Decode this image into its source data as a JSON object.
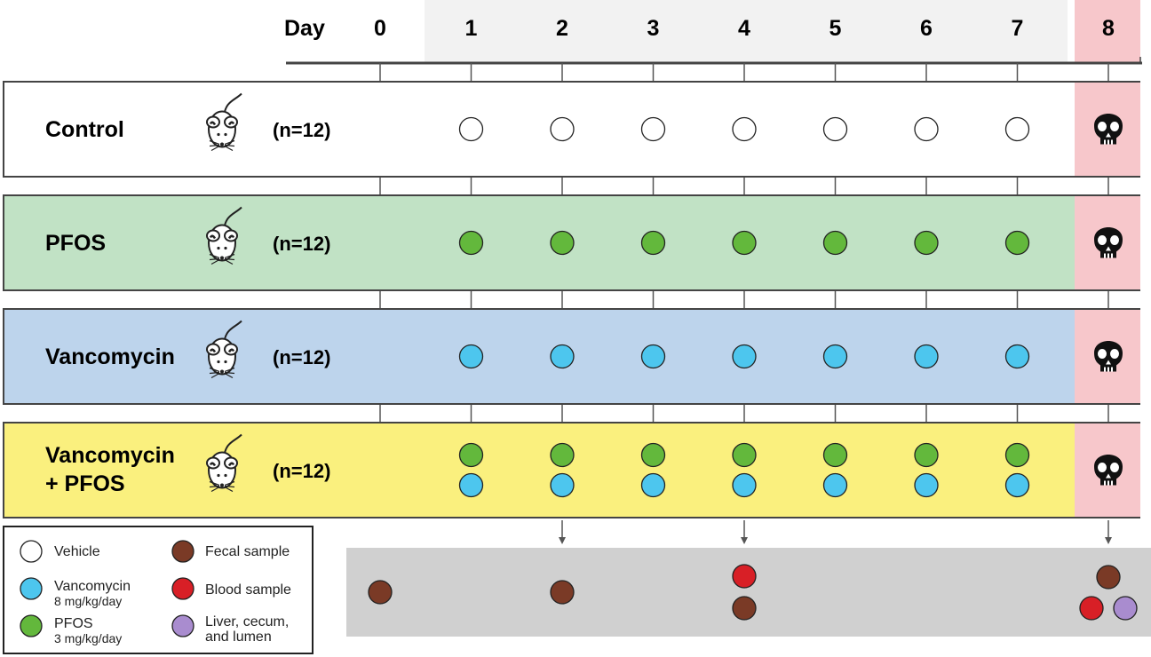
{
  "timeline": {
    "day_word": "Day",
    "days": [
      "0",
      "1",
      "2",
      "3",
      "4",
      "5",
      "6",
      "7",
      "8"
    ]
  },
  "colors": {
    "vehicle": "#ffffff",
    "vancomycin": "#4dc6ee",
    "pfos": "#63b83c",
    "fecal": "#7a3a26",
    "blood": "#d81f26",
    "tissue": "#a98ccf",
    "sacrifice_bg": "#f7c7cb",
    "dosing_period_bg": "#f2f2f2",
    "sample_panel_bg": "#d0d0d0"
  },
  "groups": [
    {
      "name_lines": [
        "Control"
      ],
      "n": "(n=12)",
      "bg": "#ffffff",
      "treatments": [
        "vehicle"
      ]
    },
    {
      "name_lines": [
        "PFOS"
      ],
      "n": "(n=12)",
      "bg": "#c1e2c5",
      "treatments": [
        "pfos"
      ]
    },
    {
      "name_lines": [
        "Vancomycin"
      ],
      "n": "(n=12)",
      "bg": "#bdd4ec",
      "treatments": [
        "vancomycin"
      ]
    },
    {
      "name_lines": [
        "Vancomycin",
        "+ PFOS"
      ],
      "n": "(n=12)",
      "bg": "#faf07e",
      "treatments": [
        "pfos",
        "vancomycin"
      ]
    }
  ],
  "treatment_days": [
    1,
    2,
    3,
    4,
    5,
    6,
    7
  ],
  "sacrifice_day": 8,
  "sacrifice_icon": "skull-icon",
  "animal_icon": "mouse-icon",
  "samples": [
    {
      "day": 0,
      "items": [
        "fecal"
      ]
    },
    {
      "day": 2,
      "items": [
        "fecal"
      ]
    },
    {
      "day": 4,
      "items": [
        "blood",
        "fecal"
      ]
    },
    {
      "day": 8,
      "items": [
        "fecal",
        "blood",
        "tissue"
      ]
    }
  ],
  "legend": {
    "vehicle": {
      "label": "Vehicle",
      "sub": ""
    },
    "vancomycin": {
      "label": "Vancomycin",
      "sub": "8 mg/kg/day"
    },
    "pfos": {
      "label": "PFOS",
      "sub": "3 mg/kg/day"
    },
    "fecal": {
      "label": "Fecal sample",
      "sub": ""
    },
    "blood": {
      "label": "Blood sample",
      "sub": ""
    },
    "tissue": {
      "label": "Liver, cecum,",
      "sub": "and lumen"
    }
  }
}
